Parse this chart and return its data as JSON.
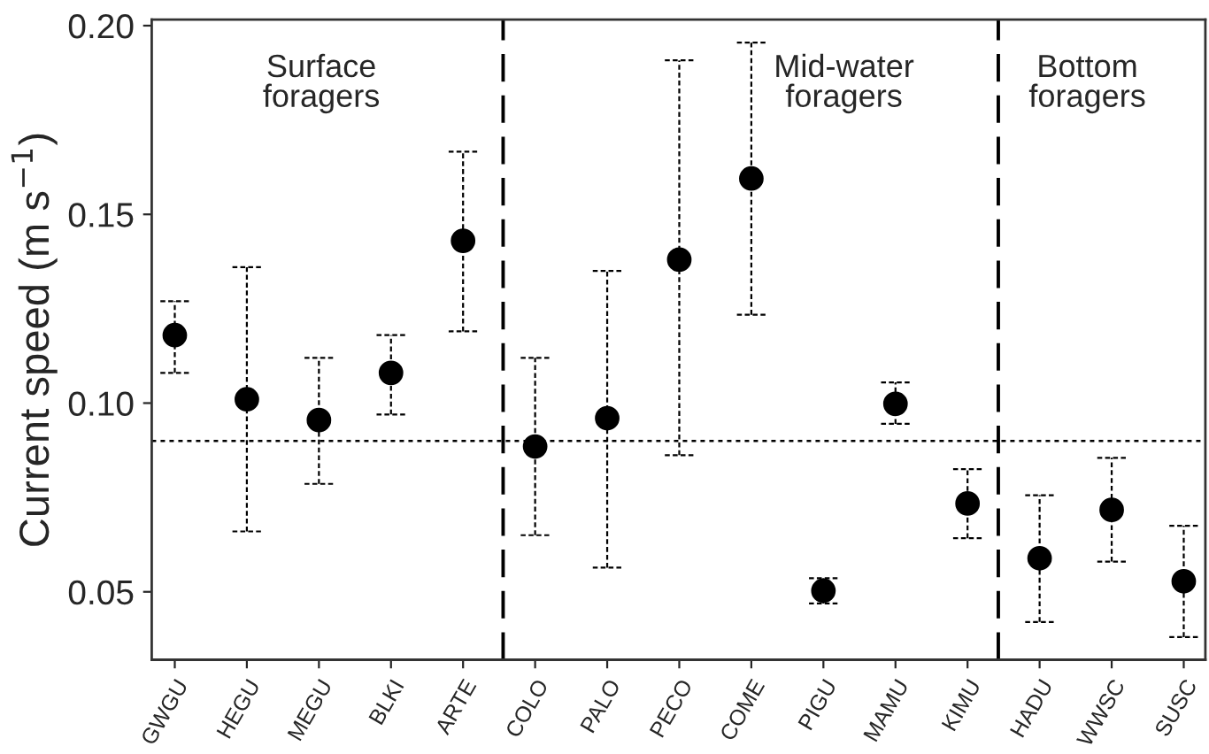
{
  "chart_data": {
    "type": "scatter",
    "ylabel": "Current speed (m s$^{−1}$)",
    "categories": [
      "GWGU",
      "HEGU",
      "MEGU",
      "BLKI",
      "ARTE",
      "COLO",
      "PALO",
      "PECO",
      "COME",
      "PIGU",
      "MAMU",
      "KIMU",
      "HADU",
      "WWSC",
      "SUSC"
    ],
    "series": [
      {
        "color": "#000000",
        "marker": "circle",
        "values": [
          0.118,
          0.101,
          0.0955,
          0.108,
          0.143,
          0.0885,
          0.096,
          0.138,
          0.1595,
          0.0503,
          0.0998,
          0.0734,
          0.0589,
          0.0717,
          0.0528
        ],
        "errors": [
          [
            0.108,
            0.127
          ],
          [
            0.066,
            0.136
          ],
          [
            0.0786,
            0.112
          ],
          [
            0.097,
            0.118
          ],
          [
            0.119,
            0.1666
          ],
          [
            0.065,
            0.112
          ],
          [
            0.0564,
            0.135
          ],
          [
            0.0862,
            0.1908
          ],
          [
            0.1234,
            0.1955
          ],
          [
            0.0469,
            0.0536
          ],
          [
            0.0945,
            0.1055
          ],
          [
            0.0642,
            0.0825
          ],
          [
            0.042,
            0.0756
          ],
          [
            0.058,
            0.0855
          ],
          [
            0.038,
            0.0675
          ]
        ]
      }
    ],
    "ylim": [
      0.032,
      0.2016
    ],
    "yticks": [
      {
        "value": 0.05,
        "label": "0.05"
      },
      {
        "value": 0.1,
        "label": "0.10"
      },
      {
        "value": 0.15,
        "label": "0.15"
      },
      {
        "value": 0.2,
        "label": "0.20"
      }
    ],
    "ref_lines": [
      {
        "axis": "y",
        "value": 0.09,
        "line_style": "dotted"
      }
    ],
    "annotations": [
      "Surface\nforagers",
      "Mid-water\nforagers",
      "Bottom\nforagers"
    ],
    "grid": false,
    "legend": false
  }
}
